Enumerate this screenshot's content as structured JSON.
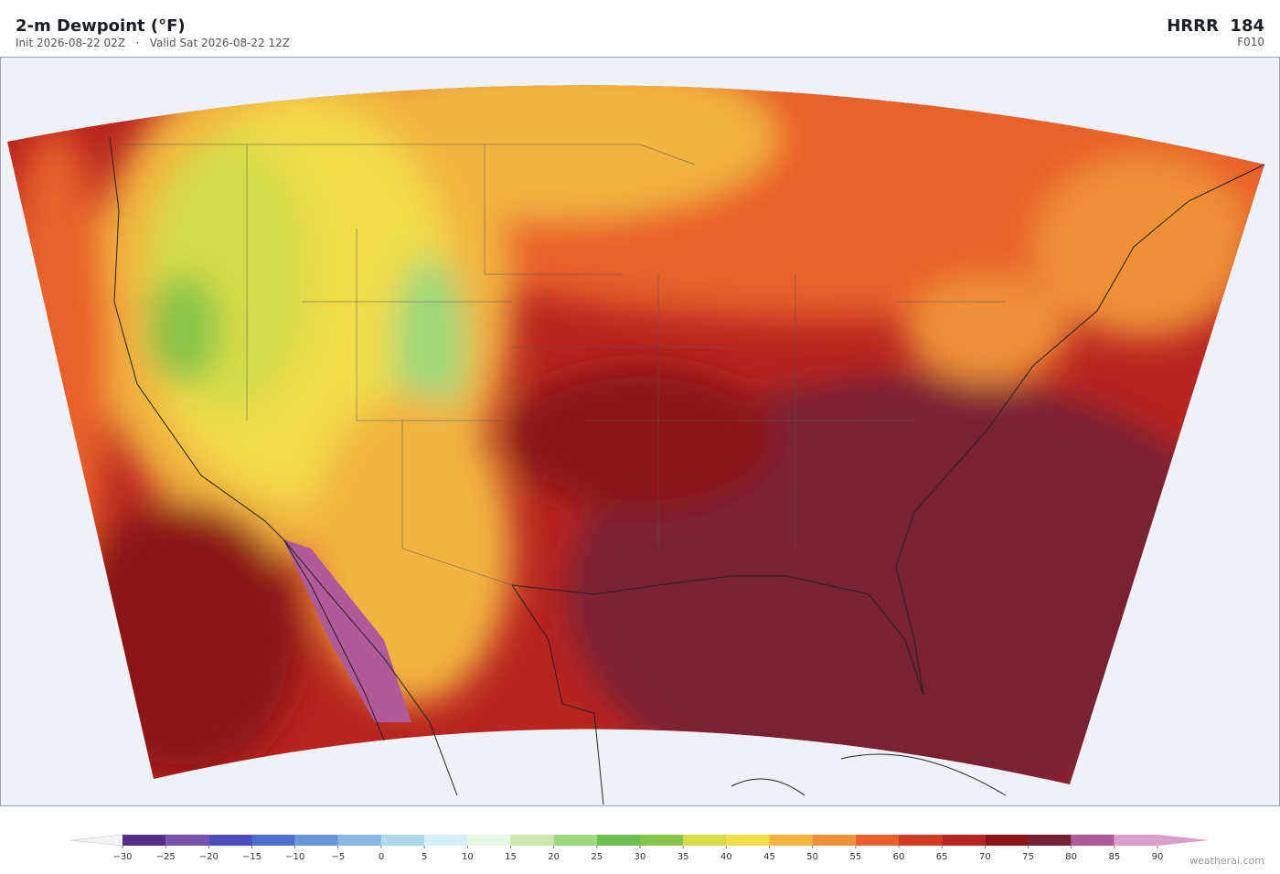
{
  "header": {
    "title": "2-m Dewpoint  (°F)",
    "subtitle": "Init 2026-08-22 02Z   ·   Valid Sat 2026-08-22 12Z",
    "model": "HRRR  184",
    "forecast_hour": "F010"
  },
  "colorbar": {
    "ticks": [
      {
        "value": -30,
        "label": "−30"
      },
      {
        "value": -25,
        "label": "−25"
      },
      {
        "value": -20,
        "label": "−20"
      },
      {
        "value": -15,
        "label": "−15"
      },
      {
        "value": -10,
        "label": "−10"
      },
      {
        "value": -5,
        "label": "−5"
      },
      0,
      5,
      10,
      15,
      20,
      25,
      30,
      35,
      40,
      45,
      50,
      55,
      60,
      65,
      70,
      75,
      80,
      85,
      90
    ],
    "colors": [
      "#542c8c",
      "#7a4fb0",
      "#4a4cc0",
      "#4f6fd0",
      "#6a98d6",
      "#8ab8e0",
      "#b0d8ec",
      "#d6eef5",
      "#e8f8e8",
      "#cce8b0",
      "#9ed87a",
      "#6cc050",
      "#88c448",
      "#d4dc48",
      "#f2dc48",
      "#f2b440",
      "#ee9038",
      "#e8602c",
      "#d03c24",
      "#b82420",
      "#8c1418",
      "#7a2034",
      "#b05a98",
      "#d8a0cc"
    ],
    "extend_colors": [
      "#f4f4f8",
      "#d8a0cc"
    ]
  },
  "credit": "weatherai.com"
}
